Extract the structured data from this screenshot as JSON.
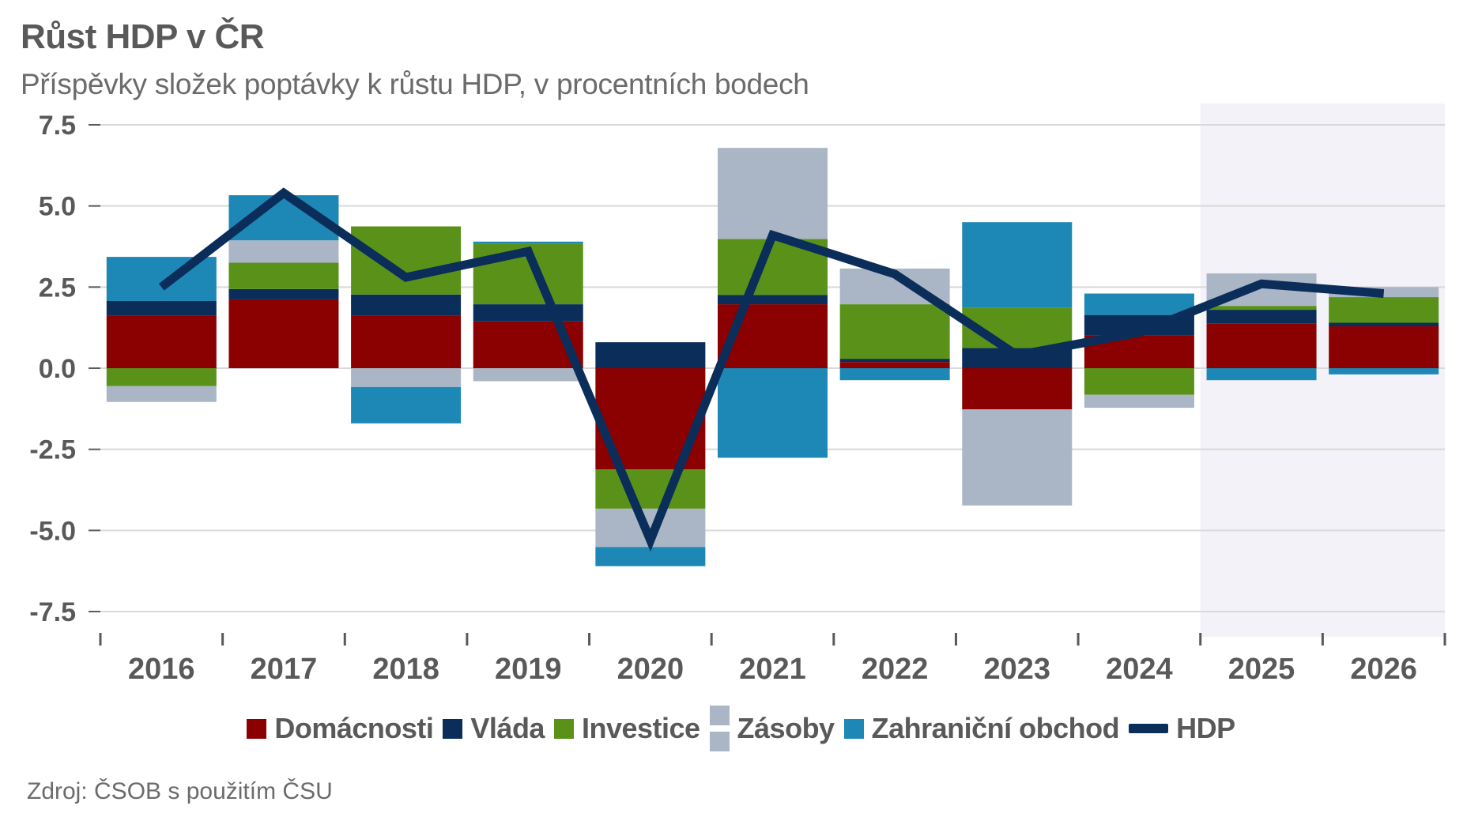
{
  "header": {
    "title": "Růst HDP v ČR",
    "subtitle": "Příspěvky složek poptávky k růstu HDP, v procentních bodech"
  },
  "source": "Zdroj: ČSOB s použitím ČSU",
  "chart_data": {
    "type": "bar",
    "stacked": true,
    "title": "Růst HDP v ČR",
    "subtitle": "Příspěvky složek poptávky k růstu HDP, v procentních bodech",
    "xlabel": "",
    "ylabel": "",
    "categories": [
      "2016",
      "2017",
      "2018",
      "2019",
      "2020",
      "2021",
      "2022",
      "2023",
      "2024",
      "2025",
      "2026"
    ],
    "ylim": [
      -7.5,
      7.5
    ],
    "yticks": [
      7.5,
      5.0,
      2.5,
      0.0,
      -2.5,
      -5.0,
      -7.5
    ],
    "ytick_labels": [
      "7.5",
      "5.0",
      "2.5",
      "0.0",
      "-2.5",
      "-5.0",
      "-7.5"
    ],
    "grid": true,
    "forecast_shading": {
      "from": "2025",
      "to": "2026",
      "color": "#f2f2f8"
    },
    "legend_position": "bottom",
    "series": [
      {
        "name": "Domácnosti",
        "kind": "bar",
        "color": "#8b0000",
        "values": [
          1.61,
          2.12,
          1.61,
          1.44,
          -3.12,
          1.97,
          0.19,
          -1.27,
          1.02,
          1.37,
          1.29
        ]
      },
      {
        "name": "Vláda",
        "kind": "bar",
        "color": "#0a2d5a",
        "values": [
          0.46,
          0.32,
          0.66,
          0.53,
          0.8,
          0.29,
          0.1,
          0.62,
          0.62,
          0.43,
          0.11
        ]
      },
      {
        "name": "Investice",
        "kind": "bar",
        "color": "#5a9219",
        "values": [
          -0.55,
          0.81,
          2.1,
          1.86,
          -1.21,
          1.72,
          1.68,
          1.25,
          -0.82,
          0.12,
          0.79
        ]
      },
      {
        "name": "Zásoby",
        "kind": "bar",
        "color": "#aab6c6",
        "values": [
          -0.49,
          0.69,
          -0.58,
          -0.4,
          -1.18,
          2.81,
          1.1,
          -2.96,
          -0.4,
          1.0,
          0.31
        ]
      },
      {
        "name": "Zahraniční obchod",
        "kind": "bar",
        "color": "#1d87b5",
        "values": [
          1.36,
          1.39,
          -1.12,
          0.07,
          -0.59,
          -2.76,
          -0.37,
          2.63,
          0.66,
          -0.37,
          -0.19
        ]
      },
      {
        "name": "HDP",
        "kind": "line",
        "color": "#0a2d5a",
        "values": [
          2.5,
          5.4,
          2.8,
          3.6,
          -5.3,
          4.1,
          2.9,
          0.4,
          1.1,
          2.6,
          2.3
        ]
      }
    ]
  }
}
